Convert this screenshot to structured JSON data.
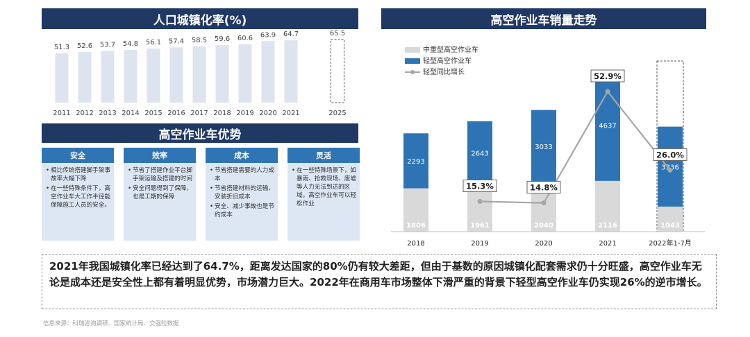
{
  "urban": {
    "title": "人口城镇化率(%)"
  },
  "advantages": {
    "title": "高空作业车优势",
    "columns": [
      {
        "title": "安全",
        "items": [
          "相比传统搭建脚手架事故率大幅下降",
          "在一些特殊条件下，高空作业车大工作半径能保障施工人员的安全。"
        ]
      },
      {
        "title": "效率",
        "items": [
          "节省了搭建作业平台脚手架运输及搭建的时间",
          "安全问题得到了保障，也是工期的保障"
        ]
      },
      {
        "title": "成本",
        "items": [
          "节省搭建需要的人力成本",
          "节省搭建材料的运输、安装折旧成本",
          "安全、减少事故也是节约成本"
        ]
      },
      {
        "title": "灵活",
        "items": [
          "在一些特殊场景下，如暴雨、抢救现场、废墟等人力无法到达的区域，高空作业车可以轻松作业"
        ]
      }
    ]
  },
  "sales": {
    "title": "高空作业车销量走势"
  },
  "summary": "2021年我国城镇化率已经达到了64.7%，距离发达国家的80%仍有较大差距，但由于基数的原因城镇化配套需求仍十分旺盛，高空作业车无论是成本还是安全性上都有着明显优势，市场潜力巨大。2022年在商用车市场整体下滑严重的背景下轻型高空作业车仍实现26%的逆市增长。",
  "source": "信息来源：科瑞咨询调研、国家统计局、交强险数据",
  "chart_data": [
    {
      "type": "bar",
      "title": "人口城镇化率(%)",
      "categories": [
        "2011",
        "2012",
        "2013",
        "2014",
        "2015",
        "2016",
        "2017",
        "2018",
        "2019",
        "2020",
        "2021",
        "2025"
      ],
      "values": [
        51.3,
        52.6,
        53.7,
        54.8,
        56.1,
        57.4,
        58.5,
        59.6,
        60.6,
        63.9,
        64.7,
        65.5
      ],
      "projected": [
        "2025"
      ],
      "ylim": [
        0,
        72
      ],
      "grid": false,
      "colors": {
        "bar": "#dde3ef",
        "projected_border": "#555555"
      }
    },
    {
      "type": "bar",
      "title": "高空作业车销量走势",
      "stacked": true,
      "categories": [
        "2018",
        "2019",
        "2020",
        "2021",
        "2022年1-7月"
      ],
      "series": [
        {
          "name": "中重型高空作业车",
          "values": [
            1806,
            1961,
            2040,
            2116,
            1043
          ],
          "color": "#d9d9d9"
        },
        {
          "name": "轻型高空作业车",
          "values": [
            2293,
            2643,
            3033,
            4637,
            3336
          ],
          "color": "#2e74b5"
        }
      ],
      "line": {
        "name": "轻型同比增长",
        "categories": [
          "2019",
          "2020",
          "2021",
          "2022年1-7月"
        ],
        "values": [
          15.3,
          14.8,
          52.9,
          26.0
        ],
        "labels": [
          "15.3%",
          "14.8%",
          "52.9%",
          "26.0%"
        ],
        "color": "#a6a6a6"
      },
      "ylim": [
        0,
        7000
      ],
      "legend": "top-left",
      "grid": false
    }
  ]
}
